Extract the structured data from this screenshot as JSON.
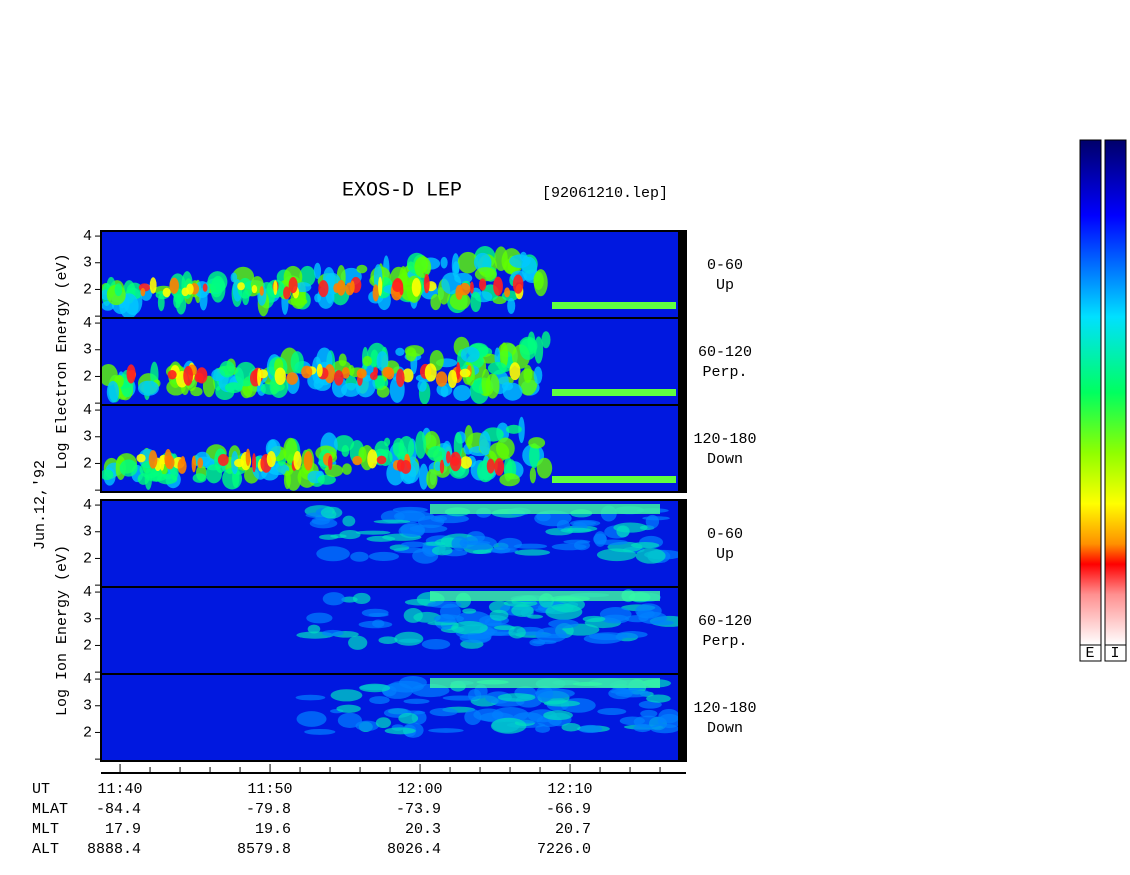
{
  "chart_data": {
    "type": "spectrogram",
    "title": "EXOS-D LEP",
    "file_label": "[92061210.lep]",
    "date_label": "Jun.12,'92",
    "groups": [
      {
        "ylabel": "Log  Electron  Energy  (eV)",
        "panels": [
          {
            "angle": "0-60",
            "direction": "Up"
          },
          {
            "angle": "60-120",
            "direction": "Perp."
          },
          {
            "angle": "120-180",
            "direction": "Down"
          }
        ]
      },
      {
        "ylabel": "Log  Ion  Energy  (eV)",
        "panels": [
          {
            "angle": "0-60",
            "direction": "Up"
          },
          {
            "angle": "60-120",
            "direction": "Perp."
          },
          {
            "angle": "120-180",
            "direction": "Down"
          }
        ]
      }
    ],
    "ylim": [
      0.93,
      4.19
    ],
    "yticks": [
      2,
      3,
      4
    ],
    "yminorticks": [
      1
    ],
    "xlim": [
      698.73,
      737.73
    ],
    "xticks": [
      {
        "value": 700,
        "label": "11:40"
      },
      {
        "value": 710,
        "label": "11:50"
      },
      {
        "value": 720,
        "label": "12:00"
      },
      {
        "value": 730,
        "label": "12:10"
      }
    ],
    "xminorticks": [
      702,
      704,
      706,
      708,
      712,
      714,
      716,
      718,
      722,
      724,
      726,
      728,
      732,
      734,
      736
    ],
    "ephemeris": [
      {
        "name": "UT"
      },
      {
        "name": "MLAT",
        "values": [
          "-84.4",
          "-79.8",
          "-73.9",
          "-66.9"
        ]
      },
      {
        "name": "MLT",
        "values": [
          "17.9",
          "19.6",
          "20.3",
          "20.7"
        ]
      },
      {
        "name": "ALT",
        "values": [
          "8888.4",
          "8579.8",
          "8026.4",
          "7226.0"
        ]
      }
    ],
    "colorbar_labels": [
      "E",
      "I"
    ]
  }
}
